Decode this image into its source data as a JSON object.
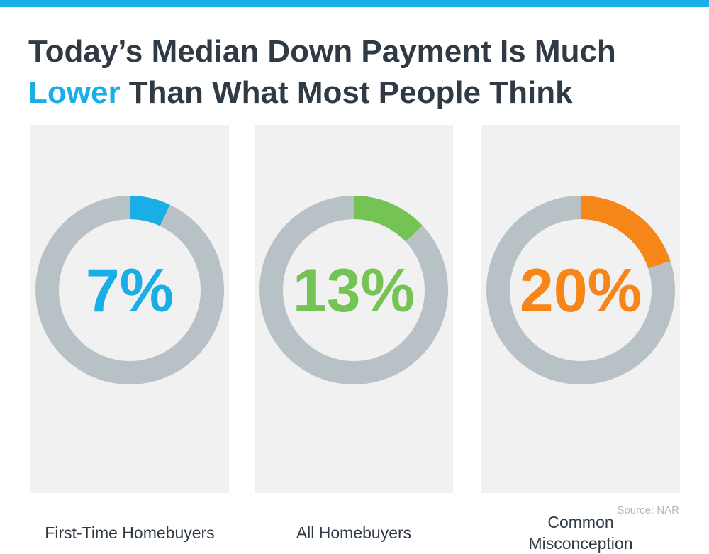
{
  "title": {
    "line1": "Today’s Median Down Payment Is Much",
    "line2_highlight": "Lower",
    "line2_rest": " Than What Most People Think"
  },
  "colors": {
    "top_bar": "#1aaee6",
    "title_text": "#2f3a45",
    "title_highlight": "#1aaee6",
    "ring_track": "#b8c1c6",
    "panel_background": "#f1f1f2"
  },
  "source": "Source: NAR",
  "chart_data": [
    {
      "type": "pie",
      "label": "First-Time Homebuyers",
      "value": 7,
      "display": "7%",
      "color": "#1aaee6"
    },
    {
      "type": "pie",
      "label": "All Homebuyers",
      "value": 13,
      "display": "13%",
      "color": "#76c355"
    },
    {
      "type": "pie",
      "label": "Common Misconception",
      "value": 20,
      "display": "20%",
      "color": "#f68617"
    }
  ]
}
